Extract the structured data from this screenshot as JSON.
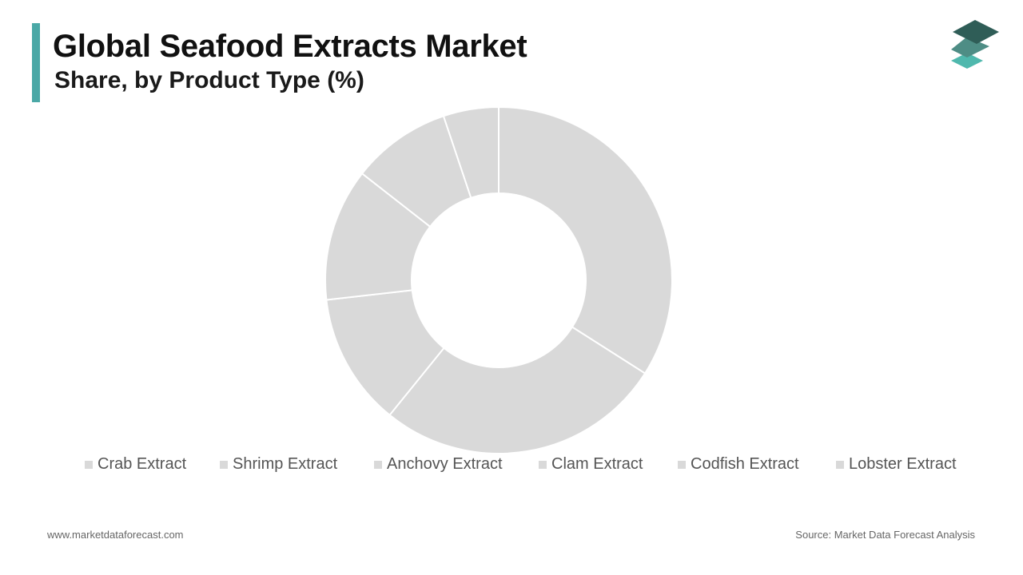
{
  "header": {
    "title": "Global Seafood Extracts Market",
    "subtitle": "Share, by Product Type (%)"
  },
  "colors": {
    "accent": "#4aa8a6",
    "slice": "#d9d9d9",
    "slice_border": "#ffffff",
    "logo_top": "#2f5d57",
    "logo_mid": "#4e8d85",
    "logo_bottom": "#4fb8ad"
  },
  "logo": {
    "icon": "stacked-layers-icon"
  },
  "chart_data": {
    "type": "pie",
    "variant": "donut",
    "categories": [
      "Crab Extract",
      "Shrimp Extract",
      "Anchovy Extract",
      "Clam Extract",
      "Codfish Extract",
      "Lobster Extract"
    ],
    "values": [
      33,
      26,
      12,
      12,
      9,
      5
    ],
    "value_unit": "%",
    "legend_position": "bottom"
  },
  "footer": {
    "website": "www.marketdataforecast.com",
    "source": "Source: Market Data Forecast Analysis"
  }
}
